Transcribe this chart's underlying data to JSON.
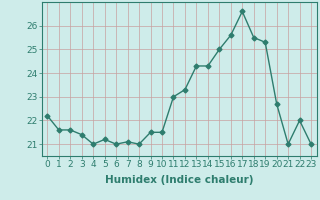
{
  "x": [
    0,
    1,
    2,
    3,
    4,
    5,
    6,
    7,
    8,
    9,
    10,
    11,
    12,
    13,
    14,
    15,
    16,
    17,
    18,
    19,
    20,
    21,
    22,
    23
  ],
  "y": [
    22.2,
    21.6,
    21.6,
    21.4,
    21.0,
    21.2,
    21.0,
    21.1,
    21.0,
    21.5,
    21.5,
    23.0,
    23.3,
    24.3,
    24.3,
    25.0,
    25.6,
    26.6,
    25.5,
    25.3,
    22.7,
    21.0,
    22.0,
    21.0
  ],
  "line_color": "#2e7d6e",
  "marker": "D",
  "markersize": 2.5,
  "linewidth": 1.0,
  "bg_color": "#ceecea",
  "grid_color": "#c8a0a0",
  "xlabel": "Humidex (Indice chaleur)",
  "xlabel_fontsize": 7.5,
  "tick_fontsize": 6.5,
  "ylim": [
    20.5,
    27.0
  ],
  "xlim": [
    -0.5,
    23.5
  ],
  "yticks": [
    21,
    22,
    23,
    24,
    25,
    26
  ],
  "xticks": [
    0,
    1,
    2,
    3,
    4,
    5,
    6,
    7,
    8,
    9,
    10,
    11,
    12,
    13,
    14,
    15,
    16,
    17,
    18,
    19,
    20,
    21,
    22,
    23
  ]
}
